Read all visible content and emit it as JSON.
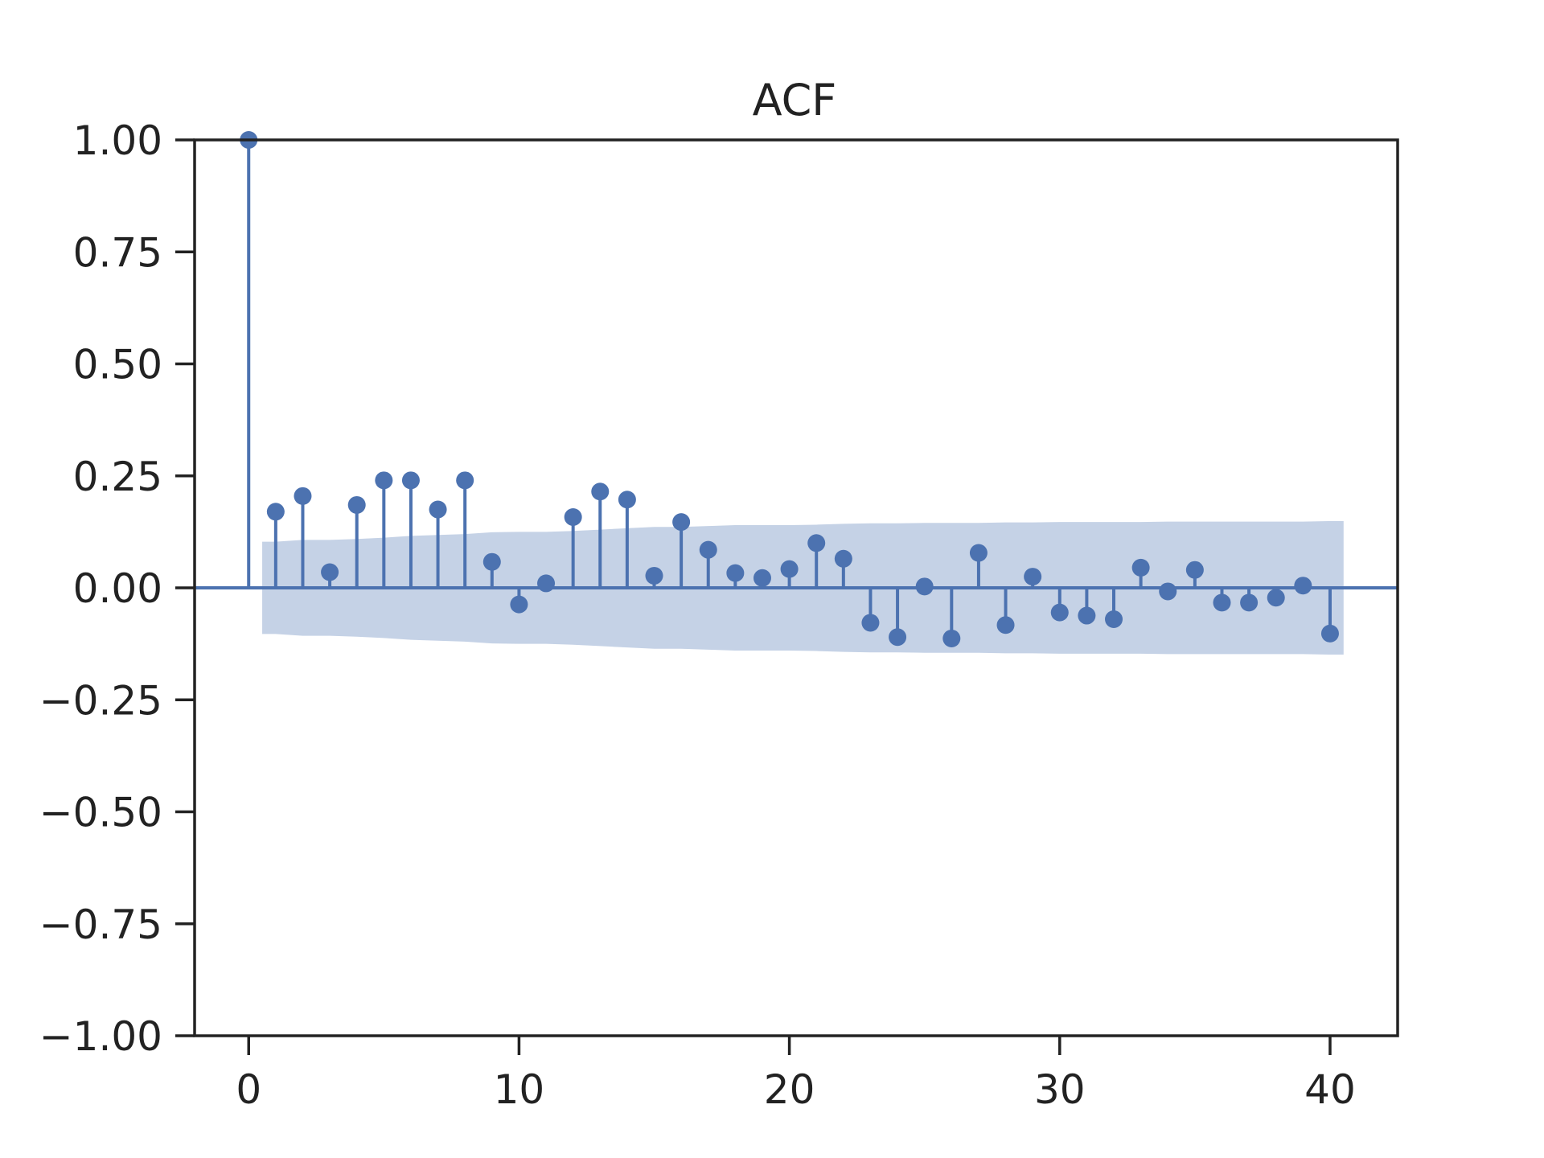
{
  "chart_data": {
    "type": "stem",
    "title": "ACF",
    "xlabel": "",
    "ylabel": "",
    "xlim": [
      -2,
      42.5
    ],
    "ylim": [
      -1.0,
      1.0
    ],
    "xticks": [
      0,
      10,
      20,
      30,
      40
    ],
    "xtick_labels": [
      "0",
      "10",
      "20",
      "30",
      "40"
    ],
    "yticks": [
      1.0,
      0.75,
      0.5,
      0.25,
      0.0,
      -0.25,
      -0.5,
      -0.75,
      -1.0
    ],
    "ytick_labels": [
      "1.00",
      "0.75",
      "0.50",
      "0.25",
      "0.00",
      "−0.25",
      "−0.50",
      "−0.75",
      "−1.00"
    ],
    "grid": false,
    "colors": {
      "stem": "#4c72b0",
      "confidence_band": "#c5d2e6",
      "axes": "#222222"
    },
    "series": [
      {
        "x": [
          0,
          1,
          2,
          3,
          4,
          5,
          6,
          7,
          8,
          9,
          10,
          11,
          12,
          13,
          14,
          15,
          16,
          17,
          18,
          19,
          20,
          21,
          22,
          23,
          24,
          25,
          26,
          27,
          28,
          29,
          30,
          31,
          32,
          33,
          34,
          35,
          36,
          37,
          38,
          39,
          40
        ],
        "values": [
          1.0,
          0.17,
          0.205,
          0.035,
          0.185,
          0.24,
          0.24,
          0.175,
          0.24,
          0.058,
          -0.037,
          0.01,
          0.158,
          0.215,
          0.197,
          0.027,
          0.147,
          0.085,
          0.033,
          0.022,
          0.042,
          0.1,
          0.065,
          -0.078,
          -0.11,
          0.003,
          -0.113,
          0.078,
          -0.083,
          0.025,
          -0.055,
          -0.062,
          -0.07,
          0.045,
          -0.008,
          0.04,
          -0.033,
          -0.033,
          -0.022,
          0.005,
          -0.102
        ]
      }
    ],
    "confidence_interval": {
      "x": [
        0.5,
        1,
        2,
        3,
        4,
        5,
        6,
        7,
        8,
        9,
        10,
        11,
        12,
        13,
        14,
        15,
        16,
        17,
        18,
        19,
        20,
        21,
        22,
        23,
        24,
        25,
        26,
        27,
        28,
        29,
        30,
        31,
        32,
        33,
        34,
        35,
        36,
        37,
        38,
        39,
        40,
        40.5
      ],
      "upper": [
        0.103,
        0.103,
        0.107,
        0.107,
        0.109,
        0.112,
        0.116,
        0.118,
        0.12,
        0.124,
        0.125,
        0.125,
        0.127,
        0.13,
        0.133,
        0.136,
        0.136,
        0.138,
        0.14,
        0.14,
        0.14,
        0.141,
        0.143,
        0.144,
        0.144,
        0.145,
        0.145,
        0.145,
        0.146,
        0.146,
        0.147,
        0.147,
        0.147,
        0.147,
        0.148,
        0.148,
        0.148,
        0.148,
        0.148,
        0.148,
        0.149,
        0.149
      ]
    }
  }
}
